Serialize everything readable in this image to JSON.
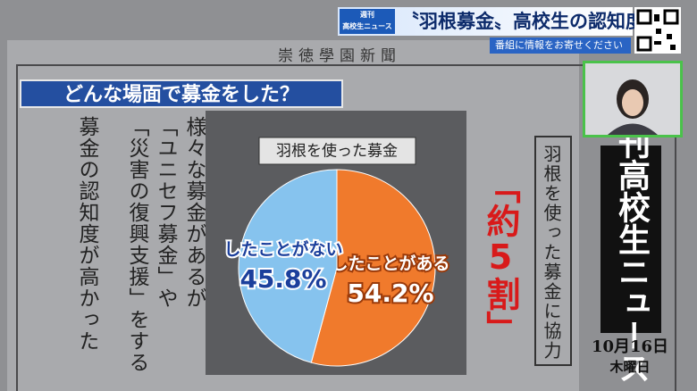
{
  "header": {
    "badge_top": "週刊",
    "badge_bottom": "高校生ニュース",
    "title": "〝羽根募金〟高校生の認知度",
    "cta": "番組に情報をお寄せください"
  },
  "board": {
    "paper_name": "崇徳學園新聞",
    "heading": "どんな場面で募金をした？",
    "columns": [
      "様々な募金があるが",
      "「ユニセフ募金」や",
      "「災害の復興支援」をする",
      "募金の認知度が高かった"
    ],
    "highlight": "「約5割」",
    "caption": "羽根を使った募金に協力",
    "program": "週刊高校生ニュース",
    "date": "10月16日",
    "weekday": "木曜日"
  },
  "chart_data": {
    "type": "pie",
    "title": "羽根を使った募金",
    "categories": [
      "したことがある",
      "したことがない"
    ],
    "values": [
      54.2,
      45.8
    ],
    "value_labels": [
      "54.2%",
      "45.8%"
    ],
    "colors": [
      "#f07a2c",
      "#86c3ee"
    ]
  }
}
